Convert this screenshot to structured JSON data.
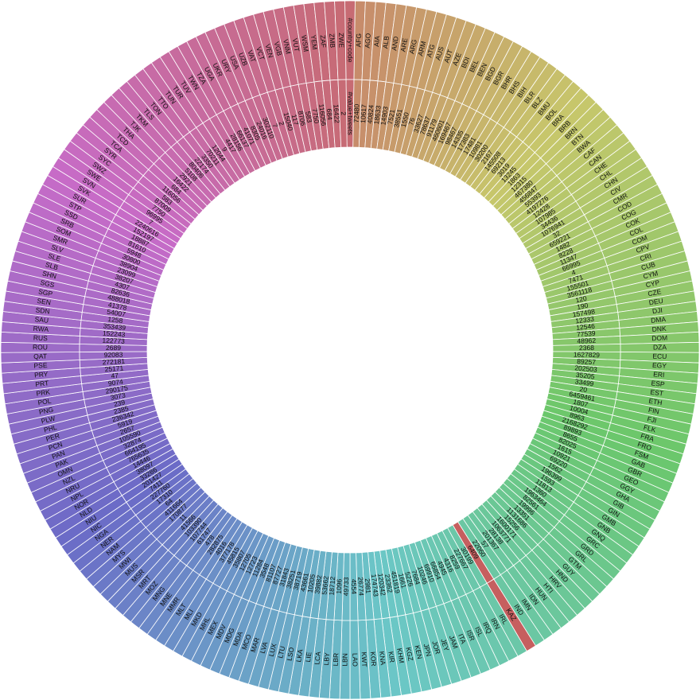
{
  "chart_data": {
    "type": "ring",
    "header": {
      "outer": "#country+code",
      "inner": "#value+tweets"
    },
    "highlight": {
      "category": "KAZ",
      "color": "#c65f5f"
    },
    "categories": [
      "AFG",
      "AGO",
      "AIA",
      "ALB",
      "AND",
      "ARE",
      "ARG",
      "ARM",
      "ATG",
      "AUS",
      "AUT",
      "AZE",
      "BDI",
      "BEL",
      "BEN",
      "BGD",
      "BGR",
      "BHR",
      "BHS",
      "BIH",
      "BLR",
      "BLZ",
      "BMU",
      "BOL",
      "BRA",
      "BRB",
      "BRN",
      "BTN",
      "BWA",
      "CAF",
      "CAN",
      "CHE",
      "CHL",
      "CHN",
      "CIV",
      "CMR",
      "COD",
      "COG",
      "COK",
      "COL",
      "COM",
      "CPV",
      "CRI",
      "CUB",
      "CYM",
      "CYP",
      "CZE",
      "DEU",
      "DJI",
      "DMA",
      "DNK",
      "DOM",
      "DZA",
      "ECU",
      "EGY",
      "ERI",
      "ESP",
      "EST",
      "ETH",
      "FIN",
      "FJI",
      "FLK",
      "FRA",
      "FRO",
      "FSM",
      "GAB",
      "GBR",
      "GEO",
      "GGY",
      "GHA",
      "GIB",
      "GIN",
      "GMB",
      "GNB",
      "GNQ",
      "GRC",
      "GRD",
      "GRL",
      "GTM",
      "GUY",
      "HND",
      "HRV",
      "HTI",
      "HUN",
      "IDN",
      "IMN",
      "IND",
      "KAZ",
      "IRL",
      "IRN",
      "IRQ",
      "ISL",
      "ISR",
      "ITA",
      "JAM",
      "JEY",
      "JOR",
      "JPN",
      "KEN",
      "KGZ",
      "KHM",
      "KIR",
      "KNA",
      "KOR",
      "KWT",
      "LAO",
      "LBN",
      "LBR",
      "LBY",
      "LCA",
      "LIE",
      "LKA",
      "LSO",
      "LTU",
      "LUX",
      "LVA",
      "MAR",
      "MCO",
      "MDA",
      "MDG",
      "MDV",
      "MEX",
      "MHL",
      "MKD",
      "MLI",
      "MLT",
      "MMR",
      "MNE",
      "MNG",
      "MOZ",
      "MRT",
      "MSR",
      "MUS",
      "MWI",
      "MYS",
      "NAM",
      "NER",
      "NGA",
      "NIC",
      "NIU",
      "NLD",
      "NOR",
      "NPL",
      "NRU",
      "NZL",
      "OMN",
      "PAK",
      "PAN",
      "PCN",
      "PER",
      "PHL",
      "PLW",
      "PNG",
      "POL",
      "PRK",
      "PRT",
      "PRY",
      "PSE",
      "QAT",
      "ROU",
      "RUS",
      "RWA",
      "SAU",
      "SDN",
      "SEN",
      "SGP",
      "SGS",
      "SHN",
      "SLB",
      "SLE",
      "SLV",
      "SMR",
      "SOM",
      "SRB",
      "SSD",
      "STP",
      "SUR",
      "SVK",
      "SVN",
      "SWE",
      "SWZ",
      "SYC",
      "SYR",
      "TCA",
      "TCD",
      "THA",
      "TJK",
      "TKM",
      "TLS",
      "TON",
      "TTO",
      "TUN",
      "TUR",
      "TUV",
      "TWN",
      "TZA",
      "UGA",
      "UKR",
      "URY",
      "USA",
      "UZB",
      "VAT",
      "VCT",
      "VEN",
      "VGB",
      "VNM",
      "VUT",
      "WSM",
      "YEM",
      "ZAF",
      "ZMB",
      "ZWE"
    ],
    "values": [
      72480,
      10617,
      40824,
      18633,
      14903,
      7521,
      38551,
      1550,
      76,
      33627,
      78637,
      91179,
      460601,
      169467,
      98467,
      14335,
      17383,
      17481,
      10981,
      30200,
      2167,
      145508,
      69213,
      3019,
      13245,
      1863,
      12315,
      467380,
      456847,
      55393,
      4197276,
      12428,
      107985,
      34436,
      1076941,
      32,
      659221,
      1482,
      8228,
      11347,
      66995,
      4,
      7471,
      155501,
      3561118,
      120,
      190,
      157498,
      12333,
      12546,
      77539,
      48962,
      2368,
      1627829,
      89257,
      202503,
      35205,
      33499,
      20,
      6459461,
      1807,
      10004,
      8963,
      2168292,
      89893,
      8655,
      82025,
      1615,
      10921,
      69220,
      1562,
      196399,
      1593,
      11813,
      1360,
      1963464,
      82561,
      19996,
      13351,
      1131686,
      15256,
      1600171,
      1063771,
      28138,
      201367,
      57,
      22060,
      6409,
      30199,
      227667,
      8259,
      4316,
      4945,
      66854,
      69910,
      10246,
      7684,
      5226,
      1661,
      451819,
      23362,
      120342,
      174743,
      2981,
      26774,
      4554,
      49733,
      1096,
      18712,
      53662,
      39882,
      10205,
      43661,
      38719,
      38251,
      31843,
      87727,
      81107,
      3548,
      11284,
      12723,
      12705,
      35807,
      45815,
      377178,
      4016,
      282875,
      478,
      61747,
      107744,
      103390,
      41566,
      11,
      170877,
      411664,
      64,
      17310,
      227760,
      7411,
      201427,
      33286,
      38097,
      14446,
      765635,
      664195,
      32874,
      105590,
      2657,
      5919,
      236342,
      2385,
      239,
      3073,
      290175,
      9074,
      47,
      25171,
      272181,
      92083,
      2689,
      122773,
      152243,
      353439,
      1258,
      54007,
      41378,
      488018,
      82636,
      4307,
      38207,
      23099,
      38904,
      30800,
      5948,
      81610,
      18887,
      152197,
      2240616,
      7,
      96995,
      7750,
      87009,
      583,
      116056,
      684,
      16422,
      2921,
      5108,
      80406,
      22174,
      3350,
      70211,
      12044,
      9,
      4417,
      28156,
      66137,
      41071,
      8305,
      24016,
      302110,
      7,
      2,
      15040,
      117,
      8706,
      583,
      7750,
      116056,
      684,
      16422,
      2
    ]
  }
}
